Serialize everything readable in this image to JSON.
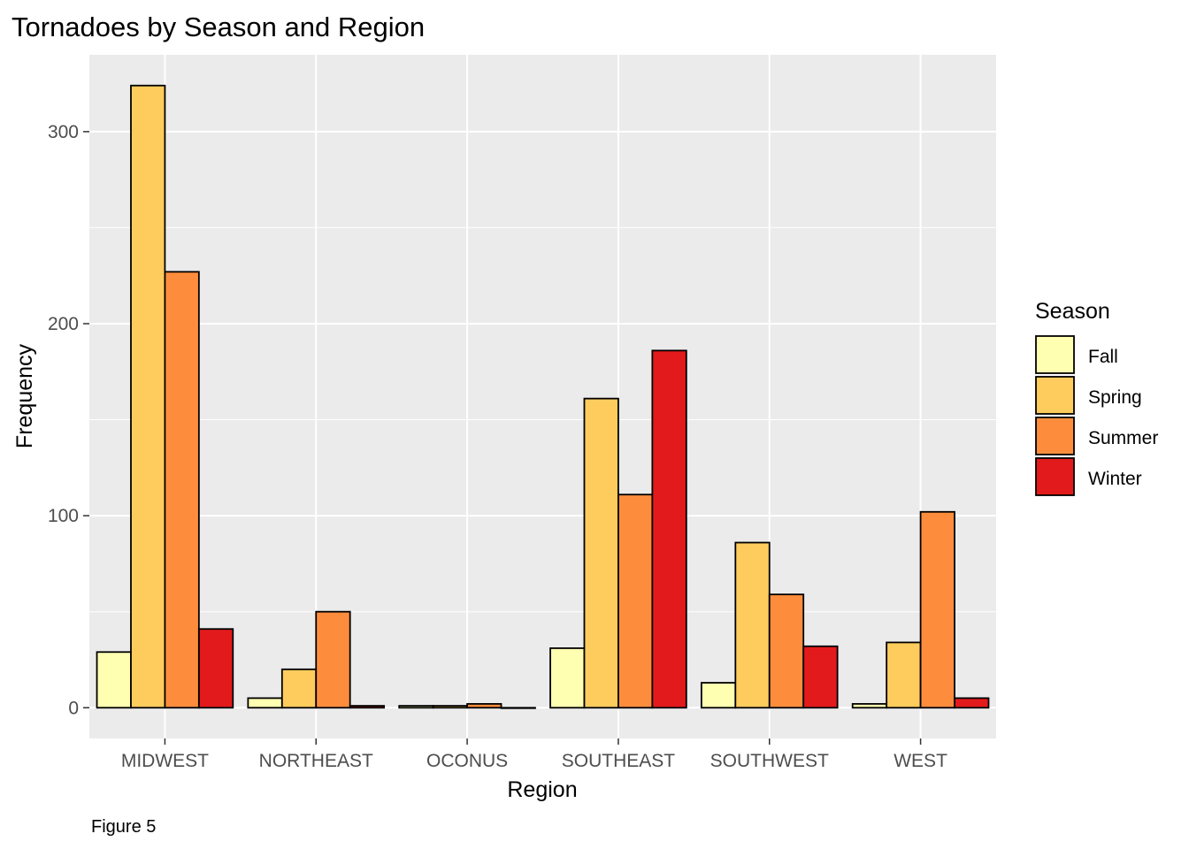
{
  "chart_data": {
    "type": "bar",
    "title": "Tornadoes by Season and Region",
    "xlabel": "Region",
    "ylabel": "Frequency",
    "caption": "Figure 5",
    "categories": [
      "MIDWEST",
      "NORTHEAST",
      "OCONUS",
      "SOUTHEAST",
      "SOUTHWEST",
      "WEST"
    ],
    "series": [
      {
        "name": "Fall",
        "color": "#FFFFB2",
        "values": [
          29,
          5,
          1,
          31,
          13,
          2
        ]
      },
      {
        "name": "Spring",
        "color": "#FECC5C",
        "values": [
          324,
          20,
          1,
          161,
          86,
          34
        ]
      },
      {
        "name": "Summer",
        "color": "#FD8D3C",
        "values": [
          227,
          50,
          2,
          111,
          59,
          102
        ]
      },
      {
        "name": "Winter",
        "color": "#E31A1C",
        "values": [
          41,
          1,
          0,
          186,
          32,
          5
        ]
      }
    ],
    "ylim": [
      -16,
      340
    ],
    "yticks": [
      0,
      100,
      200,
      300
    ],
    "legend_title": "Season",
    "legend_position": "right",
    "grid": true,
    "panel_background": "#EBEBEB",
    "bar_outline": "#000000"
  }
}
